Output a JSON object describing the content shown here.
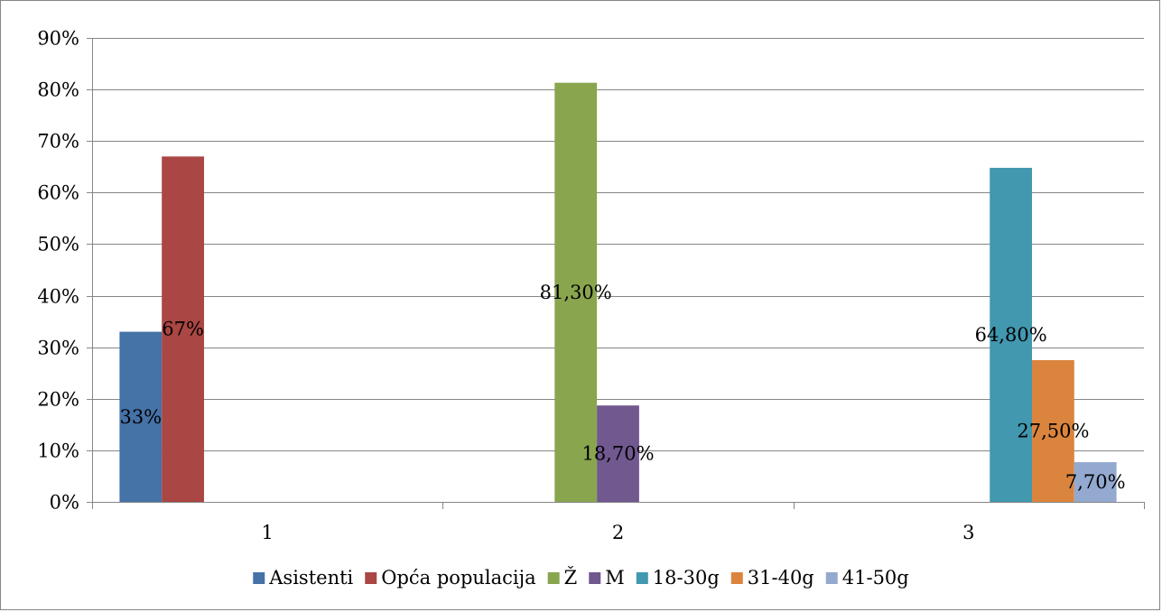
{
  "chart_data": {
    "type": "bar",
    "categories": [
      "1",
      "2",
      "3"
    ],
    "ylim": [
      0,
      0.9
    ],
    "yticks": [
      0,
      0.1,
      0.2,
      0.3,
      0.4,
      0.5,
      0.6,
      0.7,
      0.8,
      0.9
    ],
    "ytick_labels": [
      "0%",
      "10%",
      "20%",
      "30%",
      "40%",
      "50%",
      "60%",
      "70%",
      "80%",
      "90%"
    ],
    "grid": true,
    "legend_position": "bottom",
    "series": [
      {
        "name": "Asistenti",
        "color": "#4572A7",
        "values": [
          0.33,
          null,
          null
        ],
        "labels": [
          "33%",
          "",
          ""
        ]
      },
      {
        "name": "Opća populacija",
        "color": "#AA4643",
        "values": [
          0.67,
          null,
          null
        ],
        "labels": [
          "67%",
          "",
          ""
        ]
      },
      {
        "name": "Ž",
        "color": "#89A54E",
        "values": [
          null,
          0.813,
          null
        ],
        "labels": [
          "",
          "81,30%",
          ""
        ]
      },
      {
        "name": "M",
        "color": "#71588F",
        "values": [
          null,
          0.187,
          null
        ],
        "labels": [
          "",
          "18,70%",
          ""
        ]
      },
      {
        "name": "18-30g",
        "color": "#4198AF",
        "values": [
          null,
          null,
          0.648
        ],
        "labels": [
          "",
          "",
          "64,80%"
        ]
      },
      {
        "name": "31-40g",
        "color": "#DB843D",
        "values": [
          null,
          null,
          0.275
        ],
        "labels": [
          "",
          "",
          "27,50%"
        ]
      },
      {
        "name": "41-50g",
        "color": "#93A9CF",
        "values": [
          null,
          null,
          0.077
        ],
        "labels": [
          "",
          "",
          "7,70%"
        ]
      }
    ]
  }
}
